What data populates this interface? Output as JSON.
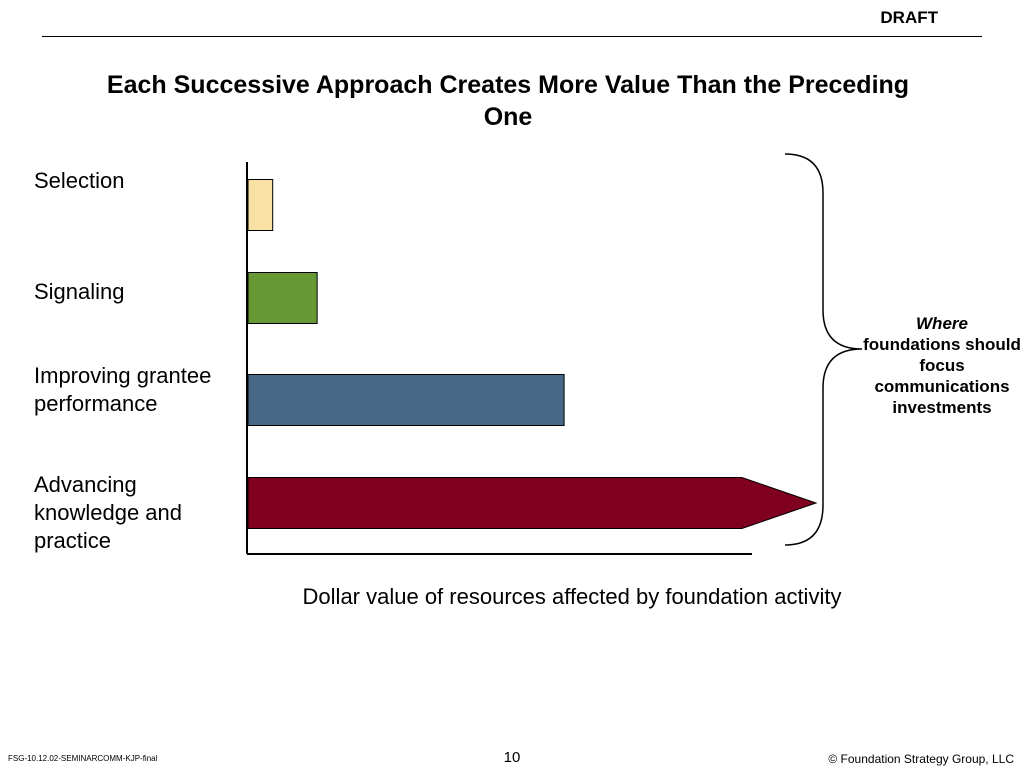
{
  "header": {
    "draft_label": "DRAFT"
  },
  "chart_data": {
    "type": "bar",
    "orientation": "horizontal",
    "title": "Each Successive Approach Creates More Value Than the Preceding One",
    "xlabel": "Dollar value of resources affected by foundation activity",
    "ylabel": "",
    "categories": [
      "Selection",
      "Signaling",
      "Improving grantee performance",
      "Advancing knowledge and practice"
    ],
    "values": [
      5,
      14,
      64,
      100
    ],
    "xlim": [
      0,
      115
    ],
    "last_bar_arrow": true,
    "colors": [
      "#F9E0A4",
      "#669933",
      "#476985",
      "#800020"
    ],
    "grid": false,
    "legend": "none",
    "annotation": {
      "emphasis": "Where",
      "text": "foundations should focus communications investments"
    }
  },
  "footer": {
    "left": "FSG-10.12.02-SEMINARCOMM-KJP-final",
    "page": "10",
    "right": "© Foundation Strategy Group, LLC"
  }
}
